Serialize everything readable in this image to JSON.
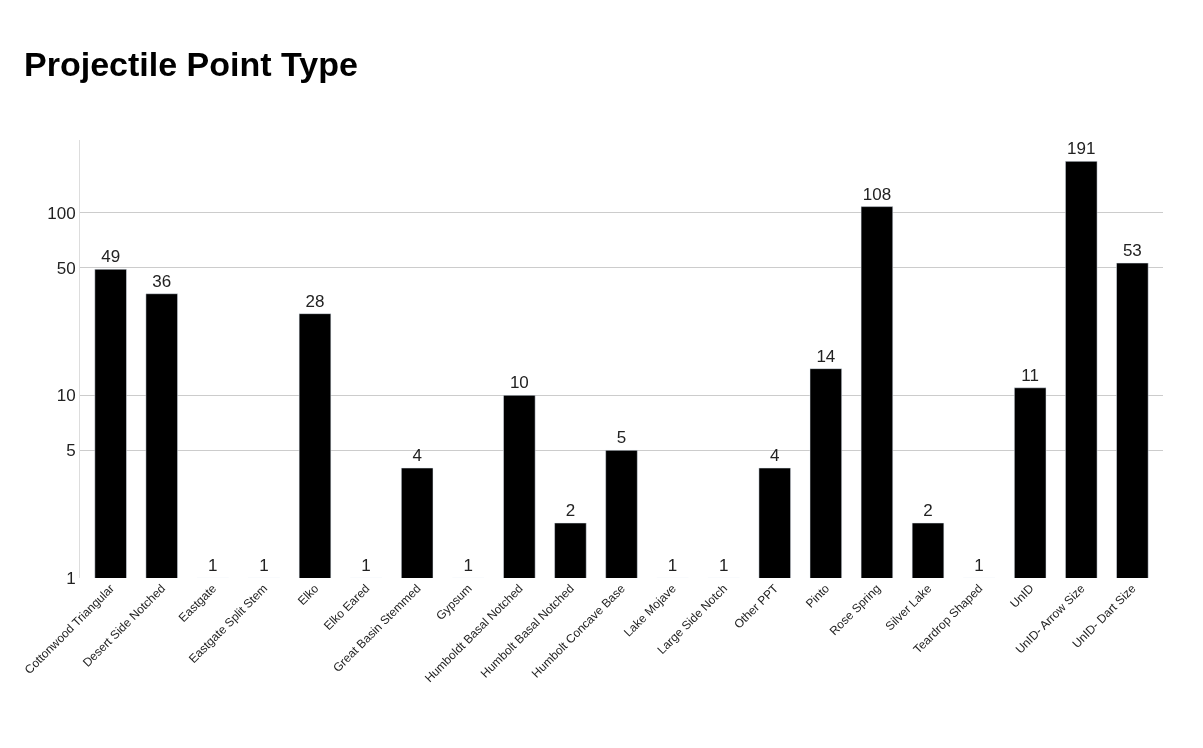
{
  "chart_data": {
    "type": "bar",
    "title": "Projectile Point Type",
    "categories": [
      "Cottonwood Triangular",
      "Desert Side Notched",
      "Eastgate",
      "Eastgate Split Stem",
      "Elko",
      "Elko Eared",
      "Great Basin Stemmed",
      "Gypsum",
      "Humboldt Basal Notched",
      "Humbolt Basal Notched",
      "Humbolt Concave Base",
      "Lake Mojave",
      "Large Side Notch",
      "Other PPT",
      "Pinto",
      "Rose Spring",
      "Silver Lake",
      "Teardrop Shaped",
      "UnID",
      "UnID- Arrow Size",
      "UnID- Dart Size"
    ],
    "values": [
      49,
      36,
      1,
      1,
      28,
      1,
      4,
      1,
      10,
      2,
      5,
      1,
      1,
      4,
      14,
      108,
      2,
      1,
      11,
      191,
      53
    ],
    "color": "#000000",
    "log": true,
    "ylim": [
      1,
      250
    ],
    "yticks": [
      1,
      5,
      10,
      50,
      100
    ],
    "grid": "y",
    "data_labels": true,
    "legend": false
  }
}
